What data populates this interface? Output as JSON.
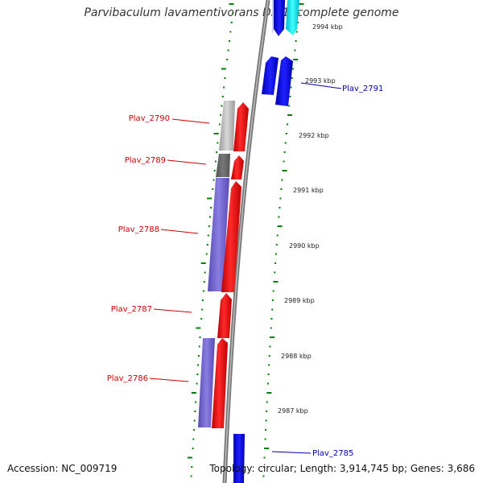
{
  "title": "Parvibaculum lavamentivorans DS-1, complete genome",
  "footer": {
    "accession": "Accession: NC_009719",
    "topology": "Topology: circular; Length: 3,914,745 bp; Genes: 3,686"
  },
  "colors": {
    "forward_gene": "#ff0000",
    "reverse_gene": "#6a5acd",
    "blue_gene": "#0000ee",
    "cyan_gene": "#00dddd",
    "gray_gene": "#999999",
    "backbone": "#888888",
    "dots": "#008000",
    "red_label": "#cc0000",
    "blue_label": "#0000aa"
  },
  "scale_ticks": [
    "2994 kbp",
    "2993 kbp",
    "2992 kbp",
    "2991 kbp",
    "2990 kbp",
    "2989 kbp",
    "2988 kbp",
    "2987 kbp"
  ],
  "gene_labels": {
    "plav_2791": "Plav_2791",
    "plav_2790": "Plav_2790",
    "plav_2789": "Plav_2789",
    "plav_2788": "Plav_2788",
    "plav_2787": "Plav_2787",
    "plav_2786": "Plav_2786",
    "plav_2785": "Plav_2785"
  }
}
